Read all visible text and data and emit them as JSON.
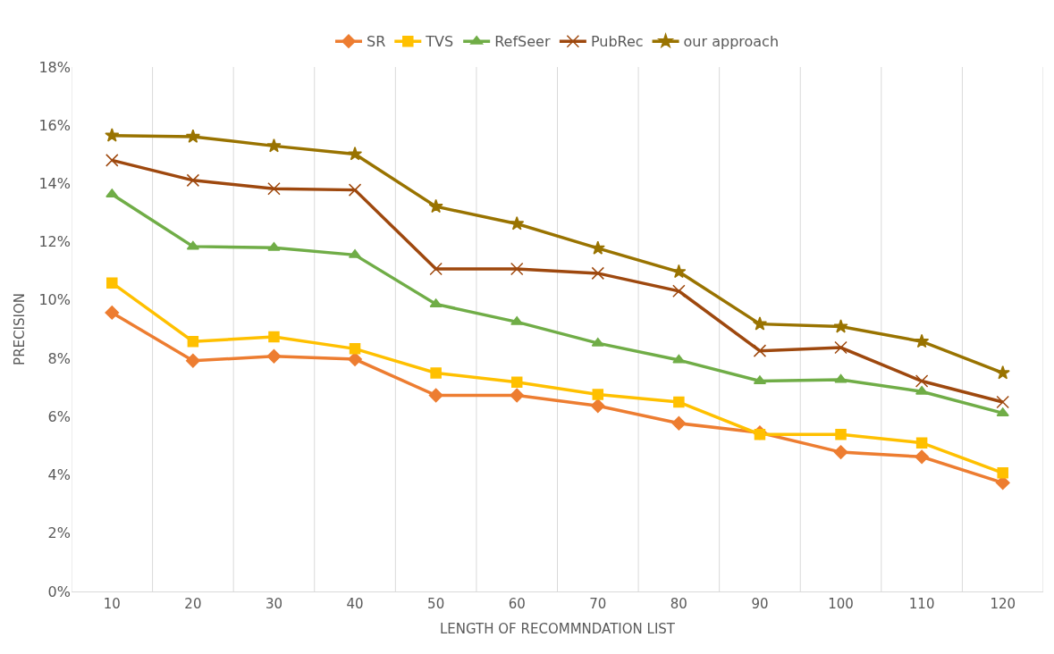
{
  "chart_data": {
    "type": "line",
    "xlabel": "LENGTH OF RECOMMNDATION LIST",
    "ylabel": "PRECISION",
    "categories": [
      "10",
      "20",
      "30",
      "40",
      "50",
      "60",
      "70",
      "80",
      "90",
      "100",
      "110",
      "120"
    ],
    "series": [
      {
        "name": "SR",
        "color": "#ed7d31",
        "marker": "diamond",
        "values": [
          9.57,
          7.92,
          8.07,
          7.97,
          6.73,
          6.73,
          6.37,
          5.77,
          5.45,
          4.78,
          4.62,
          3.73
        ]
      },
      {
        "name": "TVS",
        "color": "#ffc000",
        "marker": "square",
        "values": [
          10.59,
          8.58,
          8.74,
          8.33,
          7.5,
          7.18,
          6.76,
          6.5,
          5.39,
          5.39,
          5.1,
          4.07
        ]
      },
      {
        "name": "RefSeer",
        "color": "#70ad47",
        "marker": "triangle",
        "values": [
          13.63,
          11.84,
          11.8,
          11.55,
          9.86,
          9.25,
          8.52,
          7.94,
          7.22,
          7.27,
          6.86,
          6.12
        ]
      },
      {
        "name": "PubRec",
        "color": "#9e480e",
        "marker": "cross",
        "values": [
          14.8,
          14.11,
          13.82,
          13.78,
          11.07,
          11.07,
          10.92,
          10.31,
          8.26,
          8.37,
          7.22,
          6.5
        ]
      },
      {
        "name": "our approach",
        "color": "#997300",
        "marker": "star",
        "values": [
          15.65,
          15.61,
          15.29,
          15.01,
          13.21,
          12.62,
          11.78,
          10.97,
          9.18,
          9.09,
          8.58,
          7.5
        ]
      }
    ],
    "ylim": [
      0,
      18
    ],
    "yticks": [
      {
        "value": 0,
        "label": "0%"
      },
      {
        "value": 2,
        "label": "2%"
      },
      {
        "value": 4,
        "label": "4%"
      },
      {
        "value": 6,
        "label": "6%"
      },
      {
        "value": 8,
        "label": "8%"
      },
      {
        "value": 10,
        "label": "10%"
      },
      {
        "value": 12,
        "label": "12%"
      },
      {
        "value": 14,
        "label": "14%"
      },
      {
        "value": 16,
        "label": "16%"
      },
      {
        "value": 18,
        "label": "18%"
      }
    ],
    "grid": "x",
    "legend": "top",
    "line_style": "solid"
  }
}
